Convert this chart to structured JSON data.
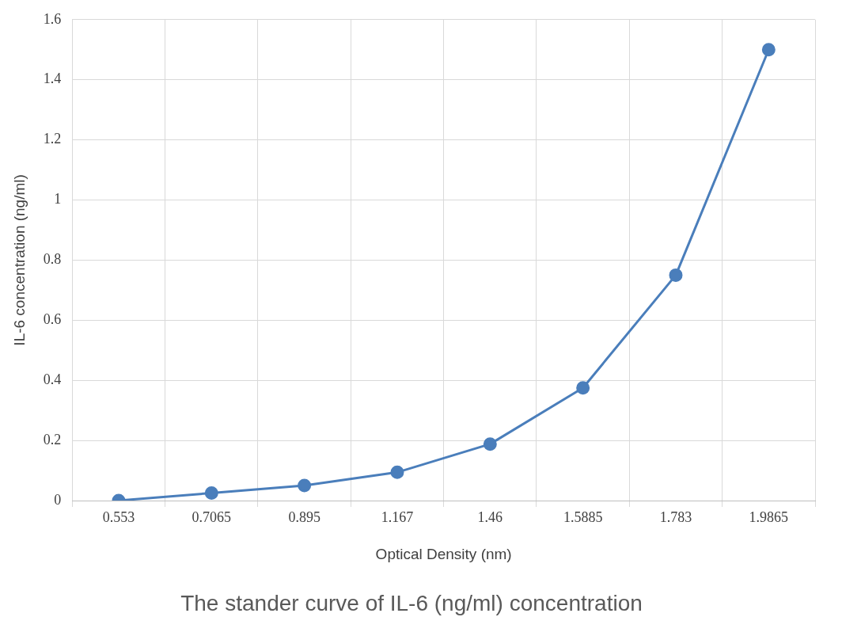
{
  "chart_data": {
    "type": "line",
    "title": "The stander curve of IL-6 (ng/ml) concentration",
    "xlabel": "Optical Density (nm)",
    "ylabel": "IL-6 concentration (ng/ml)",
    "categories": [
      "0.553",
      "0.7065",
      "0.895",
      "1.167",
      "1.46",
      "1.5885",
      "1.783",
      "1.9865"
    ],
    "series": [
      {
        "color": "#4a7ebb",
        "values": [
          0,
          0.025,
          0.05,
          0.094,
          0.188,
          0.375,
          0.75,
          1.5
        ]
      }
    ],
    "ylim": [
      0,
      1.6
    ],
    "yticks": [
      0,
      0.2,
      0.4,
      0.6,
      0.8,
      1,
      1.2,
      1.4,
      1.6
    ],
    "grid": true,
    "legend": false,
    "marker": "circle",
    "line_style": "solid"
  }
}
